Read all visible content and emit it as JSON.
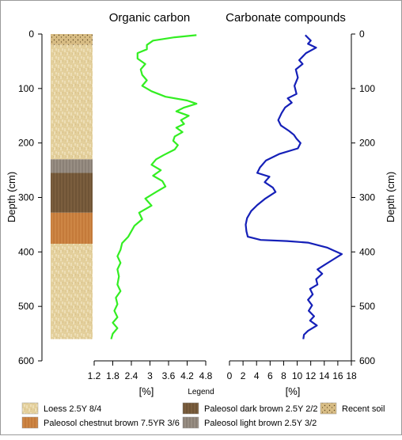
{
  "chart_data": {
    "type": "line",
    "depth_axis": {
      "label": "Depth (cm)",
      "range": [
        0,
        600
      ],
      "ticks": [
        0,
        100,
        200,
        300,
        400,
        500,
        600
      ],
      "inverted": true
    },
    "panels": [
      {
        "title": "Organic carbon",
        "xlabel": "[%]",
        "xlim": [
          1.2,
          4.8
        ],
        "xticks": [
          "1.2",
          "1.8",
          "2.4",
          "3",
          "3.6",
          "4.2",
          "4.8"
        ],
        "series": {
          "color": "#33ee22",
          "points": [
            [
              4.5,
              2
            ],
            [
              3.8,
              6
            ],
            [
              3.1,
              12
            ],
            [
              2.9,
              20
            ],
            [
              2.9,
              28
            ],
            [
              2.6,
              35
            ],
            [
              2.6,
              45
            ],
            [
              2.85,
              55
            ],
            [
              2.7,
              65
            ],
            [
              2.75,
              75
            ],
            [
              2.9,
              85
            ],
            [
              2.75,
              95
            ],
            [
              3.05,
              105
            ],
            [
              3.5,
              115
            ],
            [
              4.2,
              122
            ],
            [
              4.5,
              128
            ],
            [
              4.1,
              135
            ],
            [
              3.85,
              142
            ],
            [
              4.25,
              150
            ],
            [
              4.0,
              158
            ],
            [
              4.1,
              165
            ],
            [
              3.85,
              172
            ],
            [
              4.05,
              180
            ],
            [
              3.8,
              188
            ],
            [
              3.75,
              196
            ],
            [
              3.9,
              204
            ],
            [
              3.8,
              212
            ],
            [
              3.45,
              222
            ],
            [
              3.2,
              230
            ],
            [
              3.05,
              240
            ],
            [
              3.35,
              250
            ],
            [
              3.1,
              260
            ],
            [
              3.4,
              270
            ],
            [
              3.5,
              280
            ],
            [
              3.2,
              290
            ],
            [
              2.85,
              302
            ],
            [
              3.05,
              315
            ],
            [
              2.65,
              328
            ],
            [
              2.75,
              340
            ],
            [
              2.5,
              352
            ],
            [
              2.4,
              362
            ],
            [
              2.3,
              372
            ],
            [
              2.1,
              384
            ],
            [
              2.05,
              396
            ],
            [
              1.95,
              408
            ],
            [
              2.05,
              420
            ],
            [
              1.95,
              432
            ],
            [
              2.0,
              445
            ],
            [
              1.95,
              460
            ],
            [
              2.05,
              472
            ],
            [
              1.9,
              484
            ],
            [
              1.95,
              496
            ],
            [
              1.85,
              508
            ],
            [
              1.95,
              520
            ],
            [
              1.8,
              530
            ],
            [
              1.95,
              540
            ],
            [
              1.8,
              550
            ],
            [
              1.75,
              560
            ]
          ]
        }
      },
      {
        "title": "Carbonate compounds",
        "xlabel": "[%]",
        "xlim": [
          0,
          18
        ],
        "xticks": [
          "0",
          "2",
          "4",
          "6",
          "8",
          "10",
          "12",
          "14",
          "16",
          "18"
        ],
        "series": {
          "color": "#1520b8",
          "points": [
            [
              11.2,
              2
            ],
            [
              12.0,
              12
            ],
            [
              11.6,
              18
            ],
            [
              12.8,
              25
            ],
            [
              11.3,
              35
            ],
            [
              10.3,
              48
            ],
            [
              10.8,
              55
            ],
            [
              9.8,
              65
            ],
            [
              10.1,
              80
            ],
            [
              9.6,
              95
            ],
            [
              9.9,
              110
            ],
            [
              8.6,
              118
            ],
            [
              9.2,
              126
            ],
            [
              8.2,
              135
            ],
            [
              7.7,
              145
            ],
            [
              7.2,
              158
            ],
            [
              7.6,
              168
            ],
            [
              8.8,
              178
            ],
            [
              9.5,
              185
            ],
            [
              9.9,
              192
            ],
            [
              10.5,
              200
            ],
            [
              10.1,
              210
            ],
            [
              7.4,
              220
            ],
            [
              5.4,
              232
            ],
            [
              4.5,
              245
            ],
            [
              4.1,
              255
            ],
            [
              5.9,
              262
            ],
            [
              5.2,
              272
            ],
            [
              6.4,
              282
            ],
            [
              6.8,
              290
            ],
            [
              5.3,
              302
            ],
            [
              4.1,
              314
            ],
            [
              3.2,
              325
            ],
            [
              2.6,
              338
            ],
            [
              2.4,
              350
            ],
            [
              2.5,
              362
            ],
            [
              2.7,
              372
            ],
            [
              4.6,
              378
            ],
            [
              8.5,
              380
            ],
            [
              11.6,
              383
            ],
            [
              14.4,
              392
            ],
            [
              15.5,
              398
            ],
            [
              16.6,
              404
            ],
            [
              15.3,
              414
            ],
            [
              14.0,
              424
            ],
            [
              13.0,
              432
            ],
            [
              13.7,
              440
            ],
            [
              12.8,
              450
            ],
            [
              13.0,
              460
            ],
            [
              11.9,
              468
            ],
            [
              12.3,
              478
            ],
            [
              11.6,
              488
            ],
            [
              12.2,
              498
            ],
            [
              11.7,
              508
            ],
            [
              12.5,
              518
            ],
            [
              11.9,
              526
            ],
            [
              12.9,
              535
            ],
            [
              11.6,
              545
            ],
            [
              11.0,
              552
            ],
            [
              10.9,
              560
            ]
          ]
        }
      }
    ],
    "profile": {
      "layers": [
        {
          "legend_label": "Recent soil",
          "top": 0,
          "bottom": 20
        },
        {
          "legend_label": "Loess 2.5Y 8/4",
          "top": 20,
          "bottom": 230
        },
        {
          "legend_label": "Paleosol light brown 2.5Y 3/2",
          "top": 230,
          "bottom": 255
        },
        {
          "legend_label": "Paleosol dark brown 2.5Y 2/2",
          "top": 255,
          "bottom": 328
        },
        {
          "legend_label": "Paleosol chestnut brown 7.5YR 3/6",
          "top": 328,
          "bottom": 385
        },
        {
          "legend_label": "Loess 2.5Y 8/4",
          "top": 385,
          "bottom": 560
        }
      ]
    },
    "legend": {
      "title": "Legend",
      "items": [
        {
          "label": "Loess 2.5Y 8/4",
          "swatch": "loess"
        },
        {
          "label": "Paleosol dark brown 2.5Y 2/2",
          "swatch": "darkbrown"
        },
        {
          "label": "Recent soil",
          "swatch": "recent"
        },
        {
          "label": "Paleosol chestnut brown 7.5YR 3/6",
          "swatch": "chestnut"
        },
        {
          "label": "Paleosol light brown 2.5Y 3/2",
          "swatch": "lightbrown"
        }
      ]
    }
  }
}
